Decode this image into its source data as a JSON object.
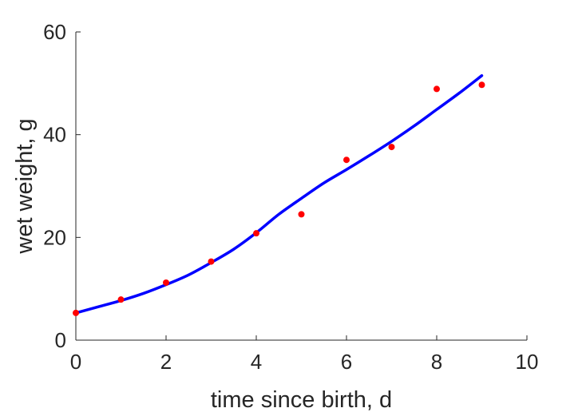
{
  "chart_data": {
    "type": "line",
    "title": "",
    "xlabel": "time since birth, d",
    "ylabel": "wet weight, g",
    "xlim": [
      0,
      10
    ],
    "ylim": [
      0,
      60
    ],
    "xticks": [
      0,
      2,
      4,
      6,
      8,
      10
    ],
    "yticks": [
      0,
      20,
      40,
      60
    ],
    "grid": false,
    "box": false,
    "colors": {
      "line": "#0000ff",
      "points": "#ff0000",
      "axis": "#262626"
    },
    "series": [
      {
        "kind": "scatter",
        "x": [
          0,
          1,
          2,
          3,
          4,
          5,
          6,
          7,
          8,
          9
        ],
        "y": [
          5.3,
          7.9,
          11.2,
          15.3,
          20.8,
          24.5,
          35.1,
          37.6,
          48.9,
          49.7
        ]
      },
      {
        "kind": "line",
        "x": [
          0,
          0.5,
          1,
          1.5,
          2,
          2.5,
          3,
          3.5,
          4,
          4.5,
          5,
          5.5,
          6,
          6.5,
          7,
          7.5,
          8,
          8.5,
          9
        ],
        "y": [
          5.3,
          6.5,
          7.7,
          9.1,
          10.8,
          12.7,
          15.1,
          17.7,
          20.9,
          24.5,
          27.6,
          30.6,
          33.2,
          35.9,
          38.7,
          41.7,
          44.9,
          48.1,
          51.5
        ]
      }
    ]
  }
}
